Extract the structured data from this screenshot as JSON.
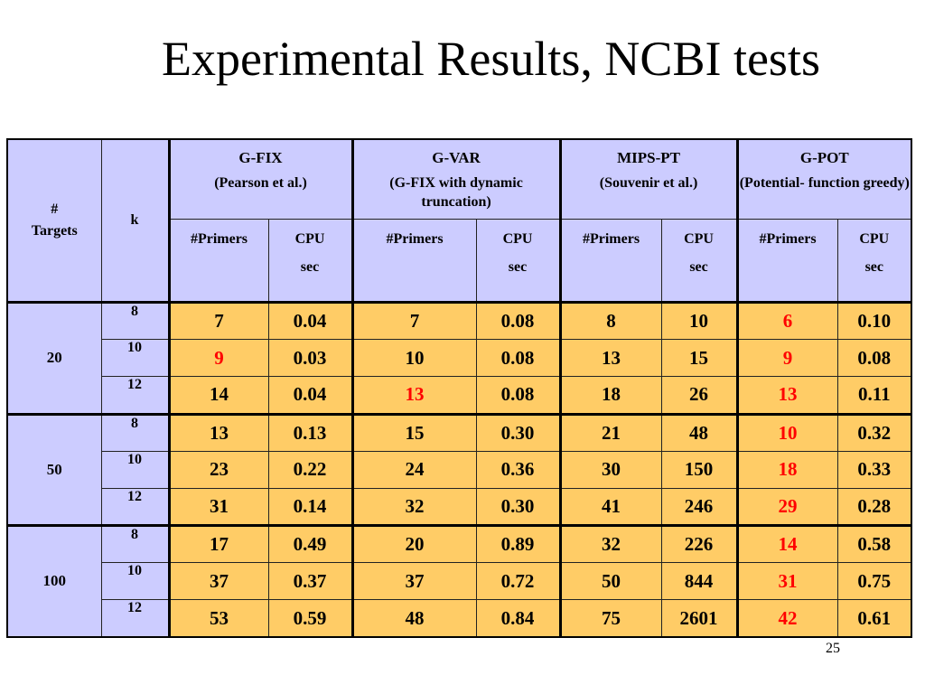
{
  "slide": {
    "title": "Experimental Results, NCBI tests",
    "page_number": "25"
  },
  "table": {
    "col_targets_line1": "#",
    "col_targets_line2": "Targets",
    "col_k": "k",
    "groups": [
      {
        "name": "G-FIX",
        "sub": "(Pearson et al.)"
      },
      {
        "name": "G-VAR",
        "sub": "(G-FIX with dynamic truncation)"
      },
      {
        "name": "MIPS-PT",
        "sub": "(Souvenir et al.)"
      },
      {
        "name": "G-POT",
        "sub": "(Potential- function greedy)"
      }
    ],
    "sub_primers": "#Primers",
    "sub_cpu_line1": "CPU",
    "sub_cpu_line2": "sec",
    "rows": [
      {
        "targets": "20",
        "k": "8",
        "cells": [
          "7",
          "0.04",
          "7",
          "0.08",
          "8",
          "10",
          "6",
          "0.10"
        ],
        "red": [
          6
        ]
      },
      {
        "targets": "",
        "k": "10",
        "cells": [
          "9",
          "0.03",
          "10",
          "0.08",
          "13",
          "15",
          "9",
          "0.08"
        ],
        "red": [
          0,
          6
        ]
      },
      {
        "targets": "",
        "k": "12",
        "cells": [
          "14",
          "0.04",
          "13",
          "0.08",
          "18",
          "26",
          "13",
          "0.11"
        ],
        "red": [
          2,
          6
        ]
      },
      {
        "targets": "50",
        "k": "8",
        "cells": [
          "13",
          "0.13",
          "15",
          "0.30",
          "21",
          "48",
          "10",
          "0.32"
        ],
        "red": [
          6
        ]
      },
      {
        "targets": "",
        "k": "10",
        "cells": [
          "23",
          "0.22",
          "24",
          "0.36",
          "30",
          "150",
          "18",
          "0.33"
        ],
        "red": [
          6
        ]
      },
      {
        "targets": "",
        "k": "12",
        "cells": [
          "31",
          "0.14",
          "32",
          "0.30",
          "41",
          "246",
          "29",
          "0.28"
        ],
        "red": [
          6
        ]
      },
      {
        "targets": "100",
        "k": "8",
        "cells": [
          "17",
          "0.49",
          "20",
          "0.89",
          "32",
          "226",
          "14",
          "0.58"
        ],
        "red": [
          6
        ]
      },
      {
        "targets": "",
        "k": "10",
        "cells": [
          "37",
          "0.37",
          "37",
          "0.72",
          "50",
          "844",
          "31",
          "0.75"
        ],
        "red": [
          6
        ]
      },
      {
        "targets": "",
        "k": "12",
        "cells": [
          "53",
          "0.59",
          "48",
          "0.84",
          "75",
          "2601",
          "42",
          "0.61"
        ],
        "red": [
          6
        ]
      }
    ]
  },
  "colors": {
    "header_bg": "#ccccff",
    "cell_bg": "#ffcc66",
    "highlight_text": "#ff0000"
  }
}
